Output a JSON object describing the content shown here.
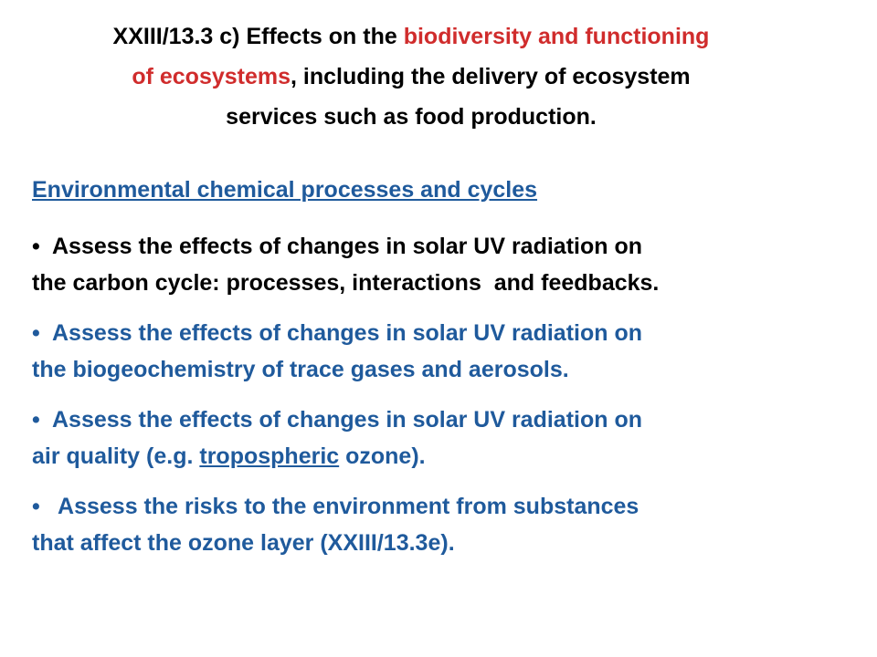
{
  "title": {
    "line1": {
      "black": "XXIII/13.3 c) Effects on the ",
      "red": "biodiversity and functioning"
    },
    "line2": {
      "red": "of ecosystems",
      "black": ", including the delivery of ecosystem"
    },
    "line3": "services such as food production."
  },
  "heading": "Environmental chemical processes and cycles",
  "bullets": [
    {
      "lines": [
        "Assess the effects of changes in solar UV radiation on",
        "the carbon cycle: processes, interactions  and feedbacks."
      ]
    },
    {
      "lines": [
        "Assess the effects of changes in solar UV radiation on",
        "the biogeochemistry of trace gases and aerosols."
      ]
    },
    {
      "lines": [
        "Assess the effects of changes in solar UV radiation on"
      ],
      "line2": {
        "before": "air quality (e.g. ",
        "underlined": "tropospheric",
        "after": " ozone)."
      }
    },
    {
      "lines": [
        " Assess the risks to the environment from substances",
        "that affect the ozone layer (XXIII/13.3e)."
      ]
    }
  ]
}
